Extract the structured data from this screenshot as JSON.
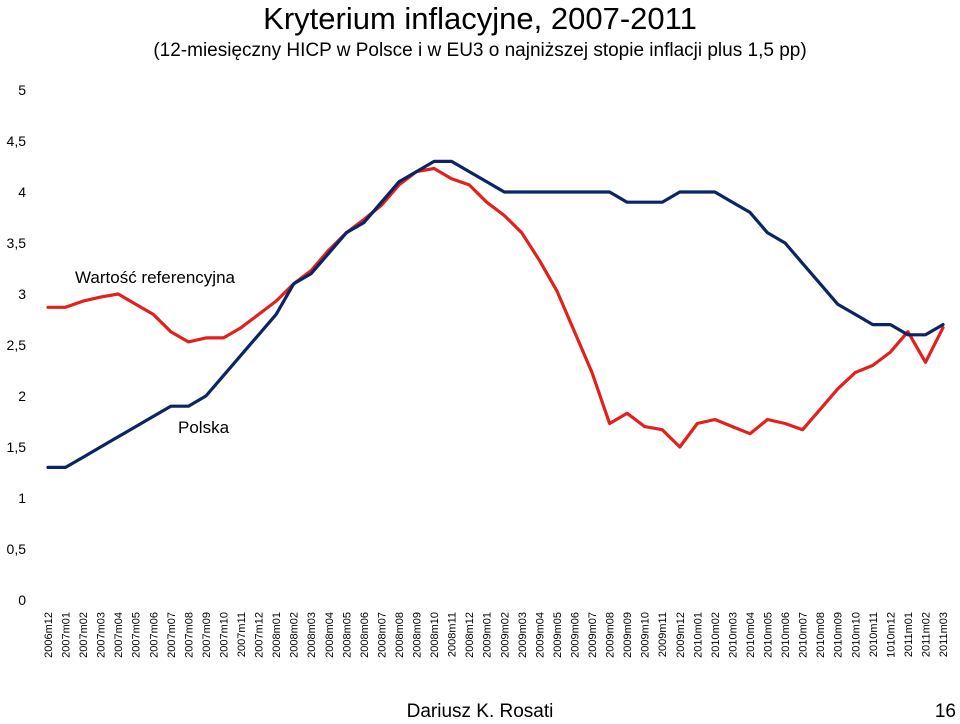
{
  "chart_data": {
    "type": "line",
    "title": "Kryterium inflacyjne, 2007-2011",
    "subtitle": "(12-miesięczny HICP w Polsce i w EU3 o najniższej stopie inflacji plus 1,5 pp)",
    "xlabel": "",
    "ylabel": "",
    "ylim": [
      0,
      5
    ],
    "yticks": [
      "0",
      "0,5",
      "1",
      "1,5",
      "2",
      "2,5",
      "3",
      "3,5",
      "4",
      "4,5",
      "5"
    ],
    "grid": false,
    "legend": "inline",
    "categories": [
      "2006m12",
      "2007m01",
      "2007m02",
      "2007m03",
      "2007m04",
      "2007m05",
      "2007m06",
      "2007m07",
      "2007m08",
      "2007m09",
      "2007m10",
      "2007m11",
      "2007m12",
      "2008m01",
      "2008m02",
      "2008m03",
      "2008m04",
      "2008m05",
      "2008m06",
      "2008m07",
      "2008m08",
      "2008m09",
      "2008m10",
      "2008m11",
      "2008m12",
      "2009m01",
      "2009m02",
      "2009m03",
      "2009m04",
      "2009m05",
      "2009m06",
      "2009m07",
      "2009m08",
      "2009m09",
      "2009m10",
      "2009m11",
      "2009m12",
      "2010m01",
      "2010m02",
      "2010m03",
      "2010m04",
      "2010m05",
      "2010m06",
      "2010m07",
      "2010m08",
      "2010m09",
      "2010m10",
      "2010m11",
      "1010m12",
      "2011m01",
      "2011m02",
      "2011m03"
    ],
    "series": [
      {
        "name": "Wartość referencyjna",
        "color": "#e3201b",
        "values": [
          2.87,
          2.87,
          2.93,
          2.97,
          3.0,
          2.9,
          2.8,
          2.63,
          2.53,
          2.57,
          2.57,
          2.67,
          2.8,
          2.93,
          3.1,
          3.23,
          3.43,
          3.6,
          3.73,
          3.87,
          4.07,
          4.2,
          4.23,
          4.13,
          4.07,
          3.9,
          3.77,
          3.6,
          3.33,
          3.03,
          2.63,
          2.23,
          1.73,
          1.83,
          1.7,
          1.67,
          1.5,
          1.73,
          1.77,
          1.7,
          1.63,
          1.77,
          1.73,
          1.67,
          1.87,
          2.07,
          2.23,
          2.3,
          2.43,
          2.63,
          2.33,
          2.67
        ]
      },
      {
        "name": "Polska",
        "color": "#0b2466",
        "values": [
          1.3,
          1.3,
          1.4,
          1.5,
          1.6,
          1.7,
          1.8,
          1.9,
          1.9,
          2.0,
          2.2,
          2.4,
          2.6,
          2.8,
          3.1,
          3.2,
          3.4,
          3.6,
          3.7,
          3.9,
          4.1,
          4.2,
          4.3,
          4.3,
          4.2,
          4.1,
          4.0,
          4.0,
          4.0,
          4.0,
          4.0,
          4.0,
          4.0,
          3.9,
          3.9,
          3.9,
          4.0,
          4.0,
          4.0,
          3.9,
          3.8,
          3.6,
          3.5,
          3.3,
          3.1,
          2.9,
          2.8,
          2.7,
          2.7,
          2.6,
          2.6,
          2.7
        ]
      }
    ]
  },
  "footer": {
    "author": "Dariusz K. Rosati",
    "page": "16"
  }
}
